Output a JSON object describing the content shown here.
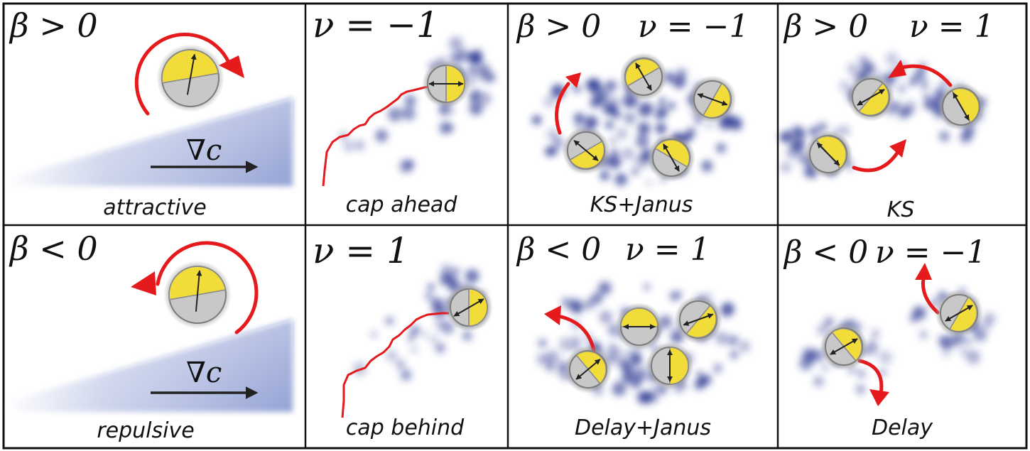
{
  "panels": [
    {
      "id": "p1",
      "math": [
        "β > 0"
      ],
      "caption": "attractive"
    },
    {
      "id": "p2",
      "math": [
        "ν = −1"
      ],
      "caption": "cap ahead"
    },
    {
      "id": "p3",
      "math": [
        "β > 0",
        "ν = −1"
      ],
      "caption": "KS+Janus"
    },
    {
      "id": "p4",
      "math": [
        "β > 0",
        "ν = 1"
      ],
      "caption": "KS"
    },
    {
      "id": "p5",
      "math": [
        "β < 0"
      ],
      "caption": "repulsive"
    },
    {
      "id": "p6",
      "math": [
        "ν = 1"
      ],
      "caption": "cap behind"
    },
    {
      "id": "p7",
      "math": [
        "β < 0",
        "ν = 1"
      ],
      "caption": "Delay+Janus"
    },
    {
      "id": "p8",
      "math": [
        "β < 0",
        "ν = −1"
      ],
      "caption": "Delay"
    }
  ],
  "gradient_label": "∇c",
  "colors": {
    "border": "#111111",
    "arrow_red": "#e41a1c",
    "cap_yellow": "#f2dc3a",
    "body_grey": "#c8c8c8",
    "cloud_blue": "#26338f",
    "ramp_blue": "#9aa8d8",
    "vector": "#222222"
  }
}
